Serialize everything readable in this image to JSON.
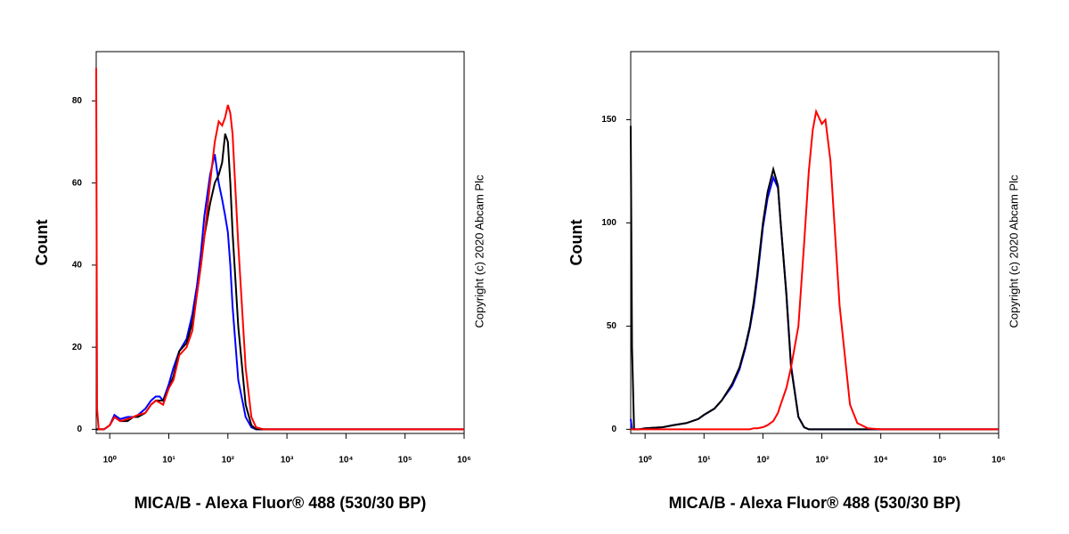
{
  "chart_data": [
    {
      "type": "line",
      "xlabel": "MICA/B - Alexa Fluor® 488 (530/30 BP)",
      "ylabel": "Count",
      "annotation": "Copyright (c) 2020 Abcam Plc",
      "xscale": "log",
      "xlim": [
        0.59,
        1000000
      ],
      "ylim": [
        -1,
        92
      ],
      "xticks": [
        {
          "value": 1,
          "label": "10⁰"
        },
        {
          "value": 10,
          "label": "10¹"
        },
        {
          "value": 100,
          "label": "10²"
        },
        {
          "value": 1000,
          "label": "10³"
        },
        {
          "value": 10000,
          "label": "10⁴"
        },
        {
          "value": 100000,
          "label": "10⁵"
        },
        {
          "value": 1000000,
          "label": "10⁶"
        }
      ],
      "yticks": [
        0,
        20,
        40,
        60,
        80
      ],
      "x": [
        0.59,
        0.61,
        0.65,
        0.8,
        1,
        1.2,
        1.5,
        2,
        2.5,
        3,
        4,
        5,
        6,
        7,
        8,
        10,
        12,
        15,
        20,
        25,
        30,
        35,
        40,
        50,
        60,
        70,
        80,
        90,
        100,
        110,
        120,
        150,
        200,
        250,
        300,
        400,
        1000,
        10000,
        100000,
        1000000
      ],
      "series": [
        {
          "color": "#0000ff",
          "values": [
            0,
            0,
            0,
            0,
            1,
            3.5,
            2.5,
            3,
            3,
            3.5,
            5,
            7,
            8,
            8,
            7,
            11,
            15,
            19,
            22,
            28,
            35,
            43,
            52,
            62,
            67,
            60,
            56,
            52,
            48,
            40,
            30,
            12,
            3,
            0.5,
            0,
            0,
            0,
            0,
            0,
            0
          ]
        },
        {
          "color": "#000000",
          "values": [
            0,
            0,
            0,
            0,
            1,
            3,
            2,
            2,
            3,
            3,
            4,
            6,
            7,
            7,
            7,
            10,
            13,
            19,
            21,
            26,
            33,
            40,
            47,
            55,
            60,
            62,
            65,
            72,
            70,
            60,
            48,
            25,
            6,
            1,
            0,
            0,
            0,
            0,
            0,
            0
          ]
        },
        {
          "color": "#ff0000",
          "values": [
            88,
            5,
            0,
            0,
            1,
            3,
            2,
            2.5,
            3,
            3.5,
            4,
            6,
            7,
            6.5,
            6,
            10,
            12,
            18,
            20,
            24,
            33,
            40,
            47,
            60,
            70,
            75,
            74,
            76,
            79,
            77,
            72,
            45,
            15,
            3,
            0.5,
            0,
            0,
            0,
            0,
            0
          ]
        }
      ]
    },
    {
      "type": "line",
      "xlabel": "MICA/B - Alexa Fluor® 488 (530/30 BP)",
      "ylabel": "Count",
      "annotation": "Copyright (c) 2020 Abcam Plc",
      "xscale": "log",
      "xlim": [
        0.57,
        1000000
      ],
      "ylim": [
        -2,
        183
      ],
      "xticks": [
        {
          "value": 1,
          "label": "10⁰"
        },
        {
          "value": 10,
          "label": "10¹"
        },
        {
          "value": 100,
          "label": "10²"
        },
        {
          "value": 1000,
          "label": "10³"
        },
        {
          "value": 10000,
          "label": "10⁴"
        },
        {
          "value": 100000,
          "label": "10⁵"
        },
        {
          "value": 1000000,
          "label": "10⁶"
        }
      ],
      "yticks": [
        0,
        50,
        100,
        150
      ],
      "x": [
        0.57,
        0.6,
        0.65,
        0.8,
        1,
        2,
        3,
        5,
        8,
        10,
        15,
        20,
        30,
        40,
        50,
        60,
        70,
        80,
        100,
        120,
        150,
        180,
        200,
        250,
        300,
        400,
        500,
        600,
        700,
        800,
        1000,
        1150,
        1400,
        2000,
        3000,
        4000,
        6000,
        10000,
        100000,
        1000000
      ],
      "series": [
        {
          "color": "#0000ff",
          "values": [
            5,
            0,
            0,
            0,
            0.5,
            1,
            2,
            3,
            5,
            7,
            10,
            14,
            21,
            29,
            39,
            49,
            60,
            73,
            98,
            112,
            122,
            117,
            100,
            66,
            31,
            6,
            1,
            0,
            0,
            0,
            0,
            0,
            0,
            0,
            0,
            0,
            0,
            0,
            0,
            0
          ]
        },
        {
          "color": "#000000",
          "values": [
            147,
            40,
            0,
            0,
            0.5,
            1,
            2,
            3,
            5,
            7,
            10,
            14,
            22,
            30,
            40,
            50,
            62,
            75,
            100,
            115,
            126,
            118,
            100,
            65,
            30,
            6,
            1,
            0,
            0,
            0,
            0,
            0,
            0,
            0,
            0,
            0,
            0,
            0,
            0,
            0
          ]
        },
        {
          "color": "#ff0000",
          "values": [
            0,
            0,
            0,
            0,
            0,
            0,
            0,
            0,
            0,
            0,
            0,
            0,
            0,
            0,
            0,
            0,
            0.5,
            0.5,
            1,
            2,
            4,
            8,
            12,
            20,
            30,
            50,
            90,
            125,
            145,
            154,
            148,
            150,
            130,
            60,
            12,
            3,
            0.5,
            0,
            0,
            0
          ]
        }
      ]
    }
  ]
}
